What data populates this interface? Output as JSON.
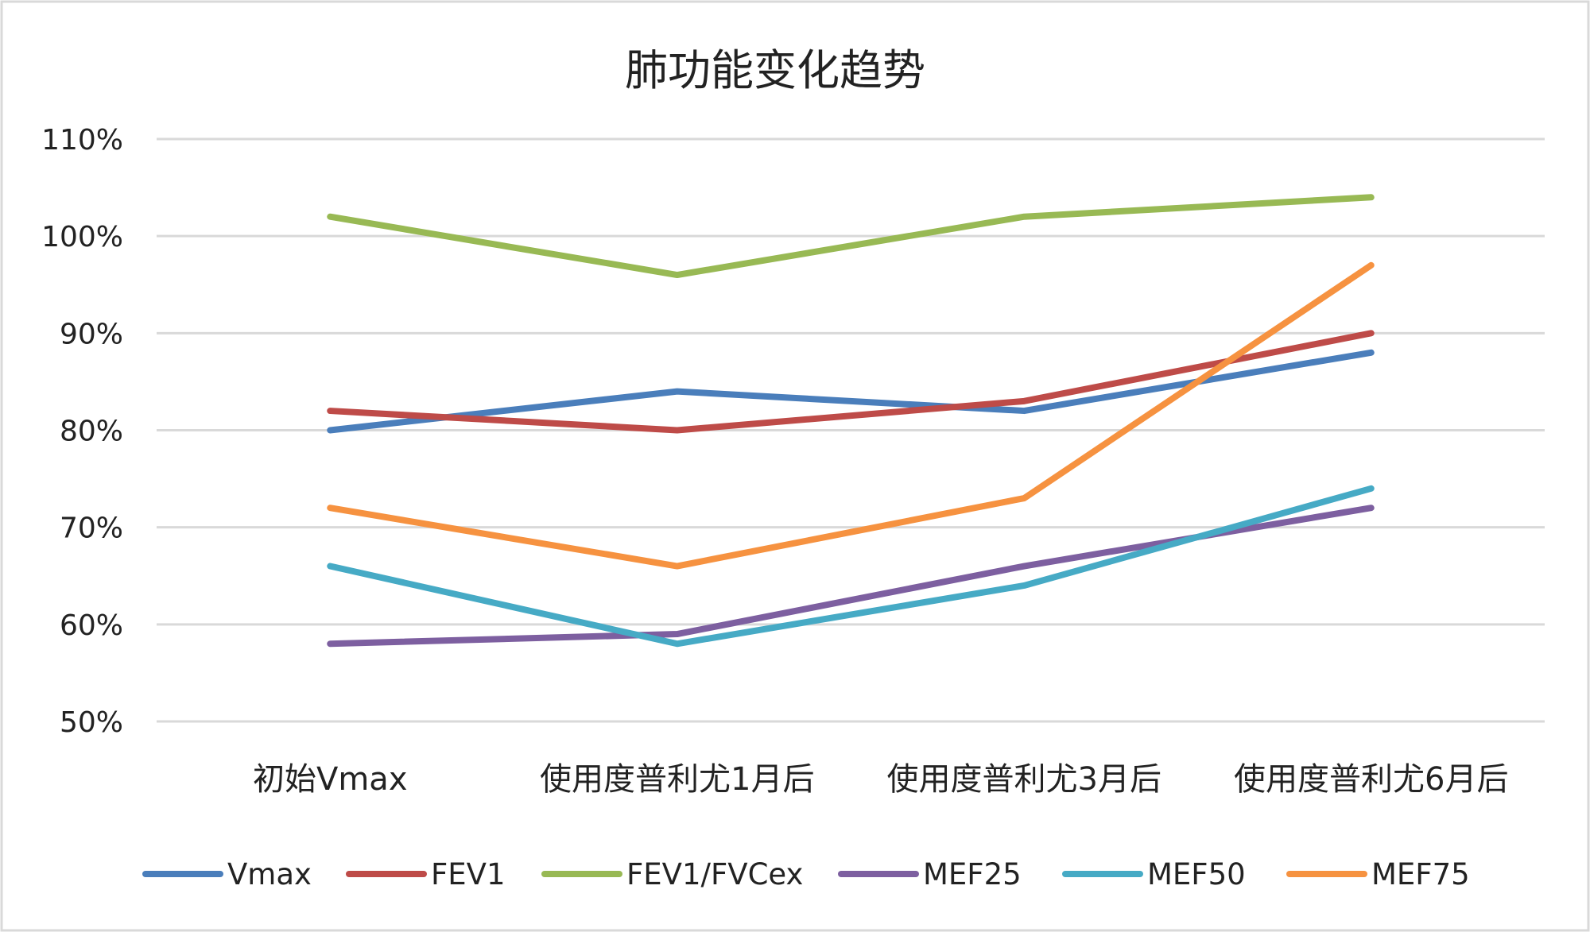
{
  "chart_data": {
    "type": "line",
    "title": "肺功能变化趋势",
    "categories": [
      "初始Vmax",
      "使用度普利尤1月后",
      "使用度普利尤3月后",
      "使用度普利尤6月后"
    ],
    "y_ticks": [
      "50%",
      "60%",
      "70%",
      "80%",
      "90%",
      "100%",
      "110%"
    ],
    "ylim": [
      50,
      110
    ],
    "y_unit": "%",
    "grid": true,
    "legend_position": "bottom",
    "series": [
      {
        "name": "Vmax",
        "color": "#4a7ebb",
        "values": [
          80,
          84,
          82,
          88
        ]
      },
      {
        "name": "FEV1",
        "color": "#be4b48",
        "values": [
          82,
          80,
          83,
          90
        ]
      },
      {
        "name": "FEV1/FVCex",
        "color": "#98b954",
        "values": [
          102,
          96,
          102,
          104
        ]
      },
      {
        "name": "MEF25",
        "color": "#7d5fa0",
        "values": [
          58,
          59,
          66,
          72
        ]
      },
      {
        "name": "MEF50",
        "color": "#46aac5",
        "values": [
          66,
          58,
          64,
          74
        ]
      },
      {
        "name": "MEF75",
        "color": "#f69240",
        "values": [
          72,
          66,
          73,
          97
        ]
      }
    ]
  }
}
